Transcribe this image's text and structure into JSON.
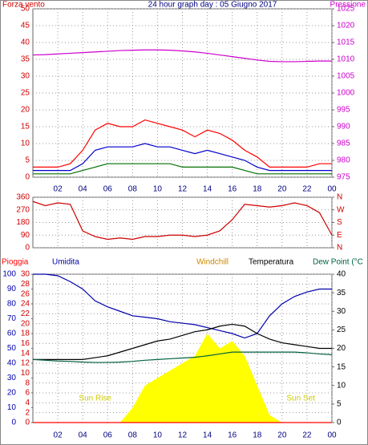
{
  "chart_data": [
    {
      "type": "line",
      "title": "24 hour graph day : 05 Giugno 2017",
      "y_label": "Forza vento",
      "y2_label": "Pressione",
      "x": [
        0,
        1,
        2,
        3,
        4,
        5,
        6,
        7,
        8,
        9,
        10,
        11,
        12,
        13,
        14,
        15,
        16,
        17,
        18,
        19,
        20,
        21,
        22,
        23,
        24
      ],
      "xlim": [
        0,
        24
      ],
      "xticks": [
        {
          "value": 2,
          "label": "02"
        },
        {
          "value": 4,
          "label": "04"
        },
        {
          "value": 6,
          "label": "06"
        },
        {
          "value": 8,
          "label": "08"
        },
        10,
        12,
        14,
        16,
        18,
        20,
        22,
        {
          "value": 24,
          "label": "00"
        }
      ],
      "ylim": [
        0,
        50
      ],
      "yticks": [
        0,
        5,
        10,
        15,
        20,
        25,
        30,
        35,
        40,
        45,
        50
      ],
      "y2lim": [
        975,
        1025
      ],
      "y2ticks": [
        975,
        980,
        985,
        990,
        995,
        1000,
        1005,
        1010,
        1015,
        1020,
        1025
      ],
      "grid": true,
      "y_color": "#d00000",
      "y2_color": "#cc00cc",
      "series": [
        {
          "color": "#ff0000",
          "values": [
            3,
            3,
            3,
            4,
            8,
            14,
            16,
            15,
            15,
            17,
            16,
            15,
            14,
            12,
            14,
            13,
            11,
            8,
            6,
            3,
            3,
            3,
            3,
            4,
            4
          ]
        },
        {
          "color": "#0000cc",
          "values": [
            2,
            2,
            2,
            2,
            4,
            8,
            9,
            9,
            9,
            10,
            9,
            9,
            8,
            7,
            8,
            7,
            6,
            5,
            3,
            2,
            2,
            2,
            2,
            2,
            2
          ]
        },
        {
          "color": "#007000",
          "values": [
            1,
            1,
            1,
            1,
            2,
            3,
            4,
            4,
            4,
            4,
            4,
            4,
            3,
            3,
            3,
            3,
            3,
            2,
            1,
            1,
            1,
            1,
            1,
            1,
            1
          ]
        },
        {
          "color": "#cc00cc",
          "axis": "y2",
          "values": [
            1011.3,
            1011.4,
            1011.6,
            1011.8,
            1012,
            1012.2,
            1012.4,
            1012.6,
            1012.7,
            1012.8,
            1012.8,
            1012.7,
            1012.5,
            1012.2,
            1011.8,
            1011.3,
            1010.8,
            1010.3,
            1009.8,
            1009.4,
            1009.3,
            1009.3,
            1009.4,
            1009.5,
            1009.5
          ]
        }
      ]
    },
    {
      "type": "line",
      "x": [
        0,
        1,
        2,
        3,
        4,
        5,
        6,
        7,
        8,
        9,
        10,
        11,
        12,
        13,
        14,
        15,
        16,
        17,
        18,
        19,
        20,
        21,
        22,
        23,
        24
      ],
      "xlim": [
        0,
        24
      ],
      "xticks": [
        {
          "value": 2,
          "label": "02"
        },
        {
          "value": 4,
          "label": "04"
        },
        {
          "value": 6,
          "label": "06"
        },
        {
          "value": 8,
          "label": "08"
        },
        10,
        12,
        14,
        16,
        18,
        20,
        22,
        {
          "value": 24,
          "label": "00"
        }
      ],
      "ylim": [
        0,
        360
      ],
      "yticks": [
        0,
        90,
        180,
        270,
        360
      ],
      "y2lim": [
        0,
        360
      ],
      "y2ticks": [
        {
          "value": 0,
          "label": "N"
        },
        {
          "value": 90,
          "label": "E"
        },
        {
          "value": 180,
          "label": "S"
        },
        {
          "value": 270,
          "label": "W"
        },
        {
          "value": 360,
          "label": "N"
        }
      ],
      "grid": true,
      "y_color": "#d00000",
      "y2_color": "#d00000",
      "series": [
        {
          "color": "#cc0000",
          "values": [
            330,
            300,
            320,
            310,
            120,
            80,
            60,
            70,
            60,
            80,
            80,
            90,
            90,
            80,
            90,
            120,
            200,
            310,
            300,
            290,
            300,
            320,
            300,
            250,
            90
          ]
        }
      ]
    },
    {
      "type": "line",
      "x": [
        0,
        1,
        2,
        3,
        4,
        5,
        6,
        7,
        8,
        9,
        10,
        11,
        12,
        13,
        14,
        15,
        16,
        17,
        18,
        19,
        20,
        21,
        22,
        23,
        24
      ],
      "xlim": [
        0,
        24
      ],
      "xticks": [
        {
          "value": 2,
          "label": "02"
        },
        {
          "value": 4,
          "label": "04"
        },
        {
          "value": 6,
          "label": "06"
        },
        {
          "value": 8,
          "label": "08"
        },
        10,
        12,
        14,
        16,
        18,
        20,
        22,
        {
          "value": 24,
          "label": "00"
        }
      ],
      "ylim": [
        0,
        30
      ],
      "yticks": [
        0,
        2,
        4,
        6,
        8,
        10,
        12,
        14,
        16,
        18,
        20,
        22,
        24,
        26,
        28,
        30
      ],
      "y3lim": [
        0,
        100
      ],
      "y3ticks": [
        0,
        10,
        20,
        30,
        40,
        50,
        60,
        70,
        80,
        90,
        100
      ],
      "y2lim": [
        0,
        40
      ],
      "y2ticks": [
        0,
        5,
        10,
        15,
        20,
        25,
        30,
        35,
        40
      ],
      "grid": true,
      "y_color": "#d00000",
      "y3_color": "#0000aa",
      "y2_color": "#000000",
      "annotations": [
        "Sun Rise",
        "Sun Set"
      ],
      "series": [
        {
          "fill": true,
          "color": "#ffff00",
          "axis": "y2",
          "values": [
            0,
            0,
            0,
            0,
            0,
            0,
            0,
            0,
            4,
            10,
            12,
            14,
            16,
            18,
            24,
            20,
            22,
            18,
            10,
            2,
            0,
            0,
            0,
            0,
            0
          ]
        },
        {
          "name": "Pioggia",
          "color": "#ff0000",
          "values": [
            0,
            0,
            0,
            0,
            0,
            0,
            0,
            0,
            0,
            0,
            0,
            0,
            0,
            0,
            0,
            0,
            0,
            0,
            0,
            0,
            0,
            0,
            0,
            0,
            0
          ]
        },
        {
          "name": "Umidita",
          "color": "#0000aa",
          "axis": "y3",
          "values": [
            100,
            100,
            99,
            95,
            90,
            82,
            78,
            75,
            72,
            71,
            70,
            68,
            67,
            66,
            64,
            62,
            60,
            57,
            60,
            72,
            80,
            85,
            88,
            90,
            90
          ]
        },
        {
          "name": "Windchill",
          "color": "#cc8800",
          "axis": "y2",
          "values": [
            null,
            null,
            null,
            null,
            null,
            null,
            null,
            null,
            null,
            null,
            null,
            null,
            null,
            null,
            null,
            null,
            null,
            null,
            null,
            null,
            null,
            null,
            null,
            null,
            null
          ]
        },
        {
          "name": "Temperatura",
          "color": "#000000",
          "axis": "y2",
          "values": [
            17,
            17,
            17,
            17,
            17,
            17.5,
            18,
            19,
            20,
            21,
            22,
            22.5,
            23.5,
            24.5,
            25,
            26,
            26.5,
            26,
            24,
            22.5,
            21.5,
            21,
            20.5,
            20,
            20
          ]
        },
        {
          "name": "Dew Point (°C",
          "color": "#006040",
          "axis": "y2",
          "values": [
            17,
            16.8,
            16.6,
            16.5,
            16.3,
            16.2,
            16.2,
            16.3,
            16.5,
            16.8,
            17,
            17.2,
            17.4,
            17.6,
            18,
            18.5,
            19,
            19,
            19,
            19,
            19,
            19,
            18.8,
            18.5,
            18.3
          ]
        }
      ]
    }
  ]
}
